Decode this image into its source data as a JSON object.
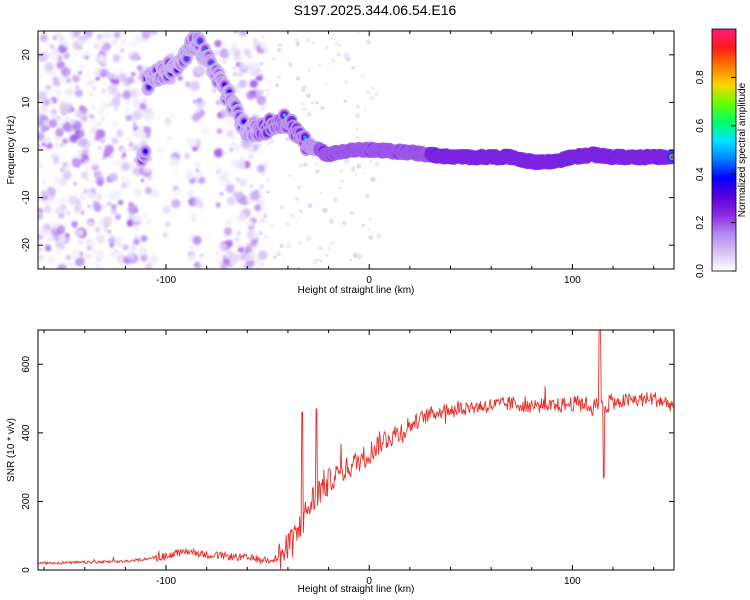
{
  "title": "S197.2025.344.06.54.E16",
  "colors": {
    "snr_line": "#e8312c",
    "background": "#ffffff",
    "frame": "#000000",
    "colormap": [
      "#ffffff",
      "#d6c4f3",
      "#b388f0",
      "#8a2be2",
      "#5a00d9",
      "#0000ff",
      "#0080ff",
      "#00e5ff",
      "#00ff66",
      "#66ff00",
      "#ffd400",
      "#ff7a00",
      "#ff1a1a",
      "#ff1a80"
    ]
  },
  "chart_data": [
    {
      "type": "heatmap",
      "xlabel": "Height of straight line (km)",
      "ylabel": "Frequency (Hz)",
      "xlim": [
        -163,
        150
      ],
      "ylim": [
        -25,
        25
      ],
      "xticks": [
        -100,
        0,
        100
      ],
      "yticks": [
        -20,
        -10,
        0,
        10,
        20
      ],
      "ridge": {
        "description_points_km_hz": [
          [
            -110,
            14
          ],
          [
            -95,
            18
          ],
          [
            -85,
            23
          ],
          [
            -60,
            4
          ],
          [
            -50,
            5
          ],
          [
            -40,
            6
          ],
          [
            -30,
            1
          ],
          [
            -20,
            -1
          ],
          [
            -10,
            0
          ],
          [
            0,
            0
          ],
          [
            20,
            -0.5
          ],
          [
            40,
            -1.5
          ],
          [
            70,
            -1.5
          ],
          [
            80,
            -2.5
          ],
          [
            90,
            -2.5
          ],
          [
            100,
            -1.5
          ],
          [
            110,
            -1
          ],
          [
            120,
            -1.5
          ],
          [
            150,
            -1.5
          ]
        ]
      },
      "colorbar": {
        "label": "Normalized spectral amplitude",
        "range": [
          0,
          1
        ],
        "ticks": [
          "0.0",
          "0.2",
          "0.4",
          "0.6",
          "0.8"
        ]
      }
    },
    {
      "type": "line",
      "xlabel": "Height of straight line (km)",
      "ylabel": "SNR (10 * v/v)",
      "xlim": [
        -163,
        150
      ],
      "ylim": [
        0,
        700
      ],
      "xticks": [
        -100,
        0,
        100
      ],
      "yticks": [
        0,
        200,
        400,
        600
      ],
      "series": [
        {
          "name": "SNR",
          "x": [
            -163,
            -140,
            -120,
            -100,
            -90,
            -80,
            -70,
            -60,
            -50,
            -45,
            -40,
            -35,
            -30,
            -25,
            -20,
            -15,
            -10,
            -5,
            0,
            5,
            10,
            15,
            20,
            25,
            30,
            40,
            50,
            60,
            70,
            80,
            90,
            100,
            105,
            110,
            112,
            114,
            116,
            120,
            130,
            140,
            150
          ],
          "y": [
            20,
            22,
            25,
            40,
            55,
            45,
            40,
            35,
            30,
            35,
            60,
            110,
            180,
            230,
            260,
            280,
            300,
            320,
            340,
            370,
            390,
            400,
            420,
            440,
            455,
            470,
            475,
            480,
            485,
            480,
            478,
            485,
            490,
            470,
            650,
            300,
            500,
            490,
            495,
            500,
            480
          ]
        }
      ]
    }
  ]
}
